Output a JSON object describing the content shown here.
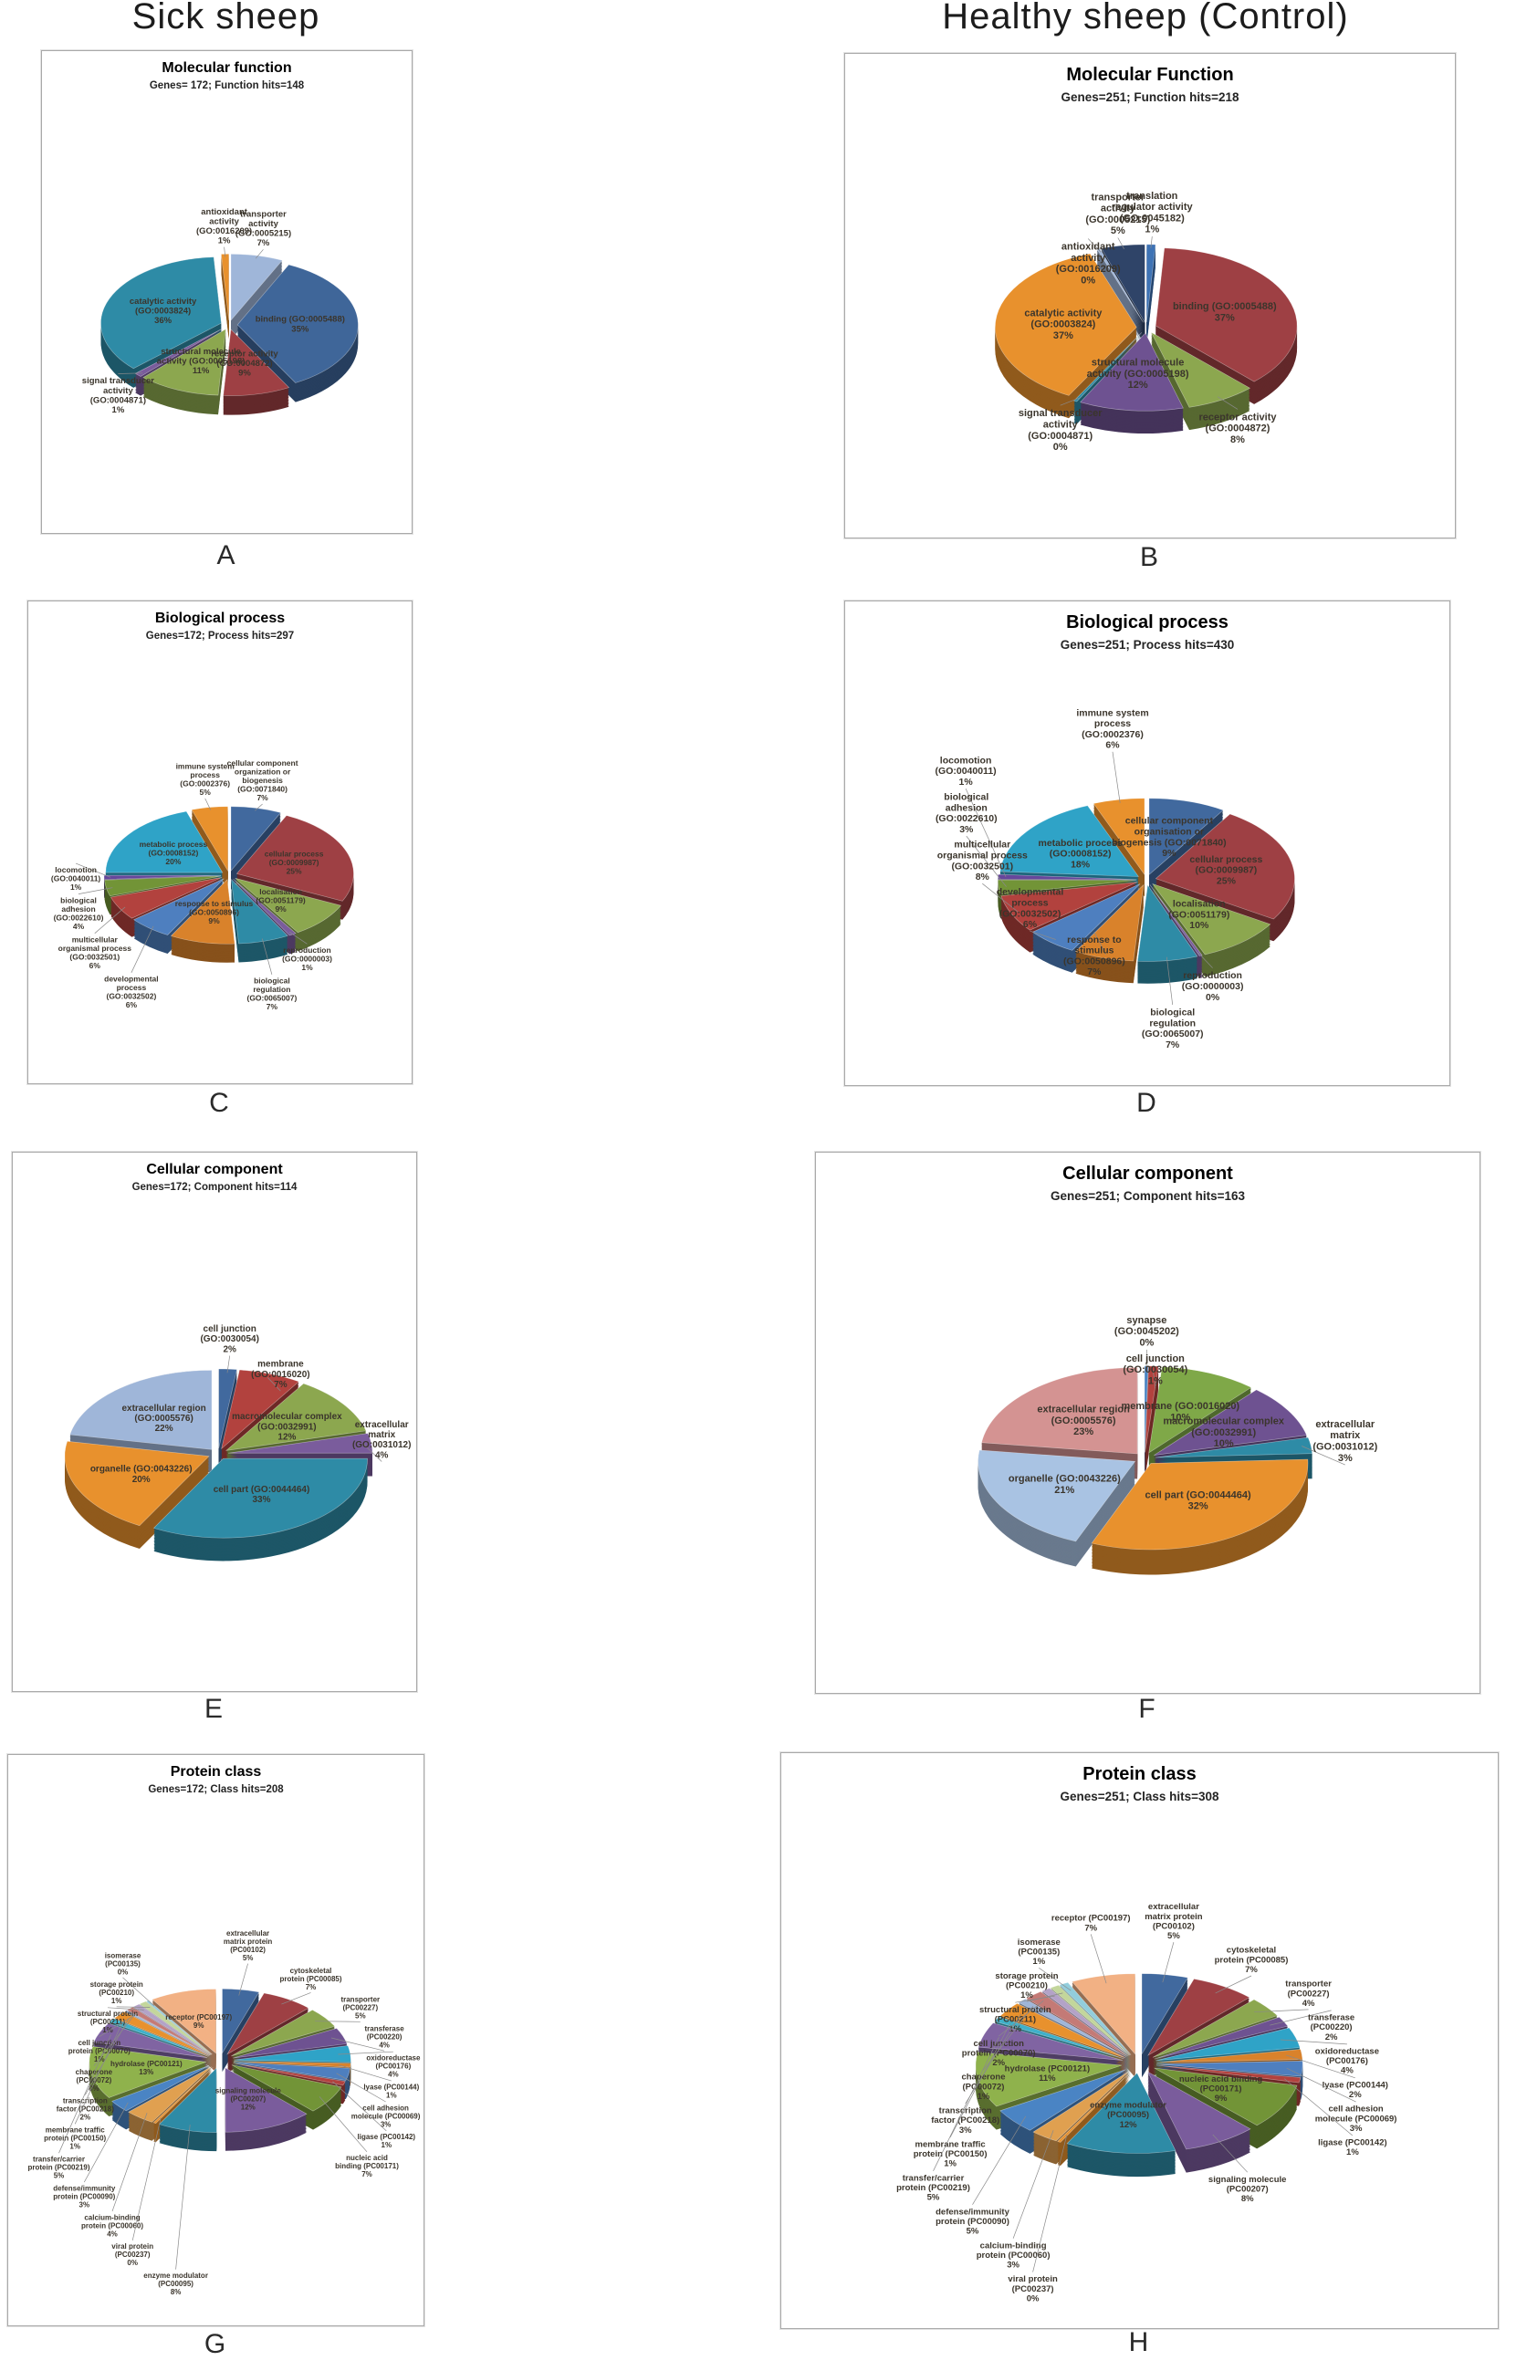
{
  "columns": {
    "sick": "Sick sheep",
    "healthy": "Healthy sheep (Control)"
  },
  "chart_data": [
    {
      "panel": "A",
      "group": "Sick sheep",
      "type": "pie",
      "title": "Molecular function",
      "subtitle": "Genes= 172; Function hits=148",
      "slices": [
        {
          "name": "transporter activity",
          "code": "(GO:0005215)",
          "pct": 7,
          "color": "#9FB6D9"
        },
        {
          "name": "binding",
          "code": "(GO:0005488)",
          "pct": 35,
          "color": "#3F6699"
        },
        {
          "name": "receptor activity",
          "code": "(GO:0004872)",
          "pct": 9,
          "color": "#9E4044"
        },
        {
          "name": "structural molecule activity",
          "code": "(GO:0005198)",
          "pct": 11,
          "color": "#8CA74F"
        },
        {
          "name": "signal transducer activity",
          "code": "(GO:0004871)",
          "pct": 1,
          "color": "#7A5C9C"
        },
        {
          "name": "catalytic activity",
          "code": "(GO:0003824)",
          "pct": 36,
          "color": "#2E8BA6"
        },
        {
          "name": "antioxidant activity",
          "code": "(GO:0016209)",
          "pct": 1,
          "color": "#E8912D"
        }
      ]
    },
    {
      "panel": "B",
      "group": "Healthy sheep (Control)",
      "type": "pie",
      "title": "Molecular Function",
      "subtitle": "Genes=251; Function hits=218",
      "slices": [
        {
          "name": "translation regulator activity",
          "code": "(GO:0045182)",
          "pct": 1,
          "color": "#3E73B5"
        },
        {
          "name": "binding",
          "code": "(GO:0005488)",
          "pct": 37,
          "color": "#9E4044"
        },
        {
          "name": "receptor activity",
          "code": "(GO:0004872)",
          "pct": 8,
          "color": "#8CA74F"
        },
        {
          "name": "structural molecule activity",
          "code": "(GO:0005198)",
          "pct": 12,
          "color": "#6E5291"
        },
        {
          "name": "signal transducer activity",
          "code": "(GO:0004871)",
          "pct": 0,
          "color": "#2E8BA6"
        },
        {
          "name": "catalytic activity",
          "code": "(GO:0003824)",
          "pct": 37,
          "color": "#E8912D"
        },
        {
          "name": "antioxidant activity",
          "code": "(GO:0016209)",
          "pct": 0,
          "color": "#9FB6D9"
        },
        {
          "name": "transporter activity",
          "code": "(GO:0005215)",
          "pct": 5,
          "color": "#2F4468"
        }
      ]
    },
    {
      "panel": "C",
      "group": "Sick sheep",
      "type": "pie",
      "title": "Biological process",
      "subtitle": "Genes=172; Process hits=297",
      "slices": [
        {
          "name": "cellular component organization or biogenesis",
          "code": "(GO:0071840)",
          "pct": 7,
          "color": "#41699E"
        },
        {
          "name": "cellular process",
          "code": "(GO:0009987)",
          "pct": 25,
          "color": "#9E4044"
        },
        {
          "name": "localisation",
          "code": "(GO:0051179)",
          "pct": 9,
          "color": "#8CA74F"
        },
        {
          "name": "reproduction",
          "code": "(GO:0000003)",
          "pct": 1,
          "color": "#7A5C9C"
        },
        {
          "name": "biological regulation",
          "code": "(GO:0065007)",
          "pct": 7,
          "color": "#2E8BA6"
        },
        {
          "name": "response to stimulus",
          "code": "(GO:0050896)",
          "pct": 9,
          "color": "#D9822B"
        },
        {
          "name": "developmental process",
          "code": "(GO:0032502)",
          "pct": 6,
          "color": "#4E7FBF"
        },
        {
          "name": "multicellular organismal process",
          "code": "(GO:0032501)",
          "pct": 6,
          "color": "#B2423E"
        },
        {
          "name": "biological adhesion",
          "code": "(GO:0022610)",
          "pct": 4,
          "color": "#729437"
        },
        {
          "name": "locomotion",
          "code": "(GO:0040011)",
          "pct": 1,
          "color": "#66479B"
        },
        {
          "name": "metabolic process",
          "code": "(GO:0008152)",
          "pct": 20,
          "color": "#2FA3C7"
        },
        {
          "name": "immune system process",
          "code": "(GO:0002376)",
          "pct": 5,
          "color": "#E8912D"
        }
      ]
    },
    {
      "panel": "D",
      "group": "Healthy sheep (Control)",
      "type": "pie",
      "title": "Biological process",
      "subtitle": "Genes=251; Process hits=430",
      "slices": [
        {
          "name": "cellular component organisation or biogenesis",
          "code": "(GO:0071840)",
          "pct": 9,
          "color": "#41699E"
        },
        {
          "name": "cellular process",
          "code": "(GO:0009987)",
          "pct": 25,
          "color": "#9E4044"
        },
        {
          "name": "localisation",
          "code": "(GO:0051179)",
          "pct": 10,
          "color": "#8CA74F"
        },
        {
          "name": "reproduction",
          "code": "(GO:0000003)",
          "pct": 0,
          "color": "#7A5C9C"
        },
        {
          "name": "biological regulation",
          "code": "(GO:0065007)",
          "pct": 7,
          "color": "#2E8BA6"
        },
        {
          "name": "response to stimulus",
          "code": "(GO:0050896)",
          "pct": 7,
          "color": "#D9822B"
        },
        {
          "name": "developmental process",
          "code": "(GO:0032502)",
          "pct": 6,
          "color": "#4E7FBF"
        },
        {
          "name": "multicellular organismal process",
          "code": "(GO:0032501)",
          "pct": 8,
          "color": "#B2423E"
        },
        {
          "name": "biological adhesion",
          "code": "(GO:0022610)",
          "pct": 3,
          "color": "#729437"
        },
        {
          "name": "locomotion",
          "code": "(GO:0040011)",
          "pct": 1,
          "color": "#66479B"
        },
        {
          "name": "metabolic process",
          "code": "(GO:0008152)",
          "pct": 18,
          "color": "#2FA3C7"
        },
        {
          "name": "immune system process",
          "code": "(GO:0002376)",
          "pct": 6,
          "color": "#E8912D"
        }
      ]
    },
    {
      "panel": "E",
      "group": "Sick sheep",
      "type": "pie",
      "title": "Cellular component",
      "subtitle": "Genes=172; Component hits=114",
      "slices": [
        {
          "name": "cell junction",
          "code": "(GO:0030054)",
          "pct": 2,
          "color": "#41699E"
        },
        {
          "name": "membrane",
          "code": "(GO:0016020)",
          "pct": 7,
          "color": "#B2423E"
        },
        {
          "name": "macromolecular complex",
          "code": "(GO:0032991)",
          "pct": 12,
          "color": "#8CA74F"
        },
        {
          "name": "extracellular matrix",
          "code": "(GO:0031012)",
          "pct": 4,
          "color": "#7A5C9C"
        },
        {
          "name": "cell part",
          "code": "(GO:0044464)",
          "pct": 33,
          "color": "#2E8BA6"
        },
        {
          "name": "organelle",
          "code": "(GO:0043226)",
          "pct": 20,
          "color": "#E8912D"
        },
        {
          "name": "extracellular region",
          "code": "(GO:0005576)",
          "pct": 22,
          "color": "#9FB6D9"
        }
      ]
    },
    {
      "panel": "F",
      "group": "Healthy sheep (Control)",
      "type": "pie",
      "title": "Cellular component",
      "subtitle": "Genes=251; Component hits=163",
      "slices": [
        {
          "name": "synapse",
          "code": "(GO:0045202)",
          "pct": 0,
          "color": "#4A84C4"
        },
        {
          "name": "cell junction",
          "code": "(GO:0030054)",
          "pct": 1,
          "color": "#B2423E"
        },
        {
          "name": "membrane",
          "code": "(GO:0016020)",
          "pct": 10,
          "color": "#7FA848"
        },
        {
          "name": "macromolecular complex",
          "code": "(GO:0032991)",
          "pct": 10,
          "color": "#6E5291"
        },
        {
          "name": "extracellular matrix",
          "code": "(GO:0031012)",
          "pct": 3,
          "color": "#2E8BA6"
        },
        {
          "name": "cell part",
          "code": "(GO:0044464)",
          "pct": 32,
          "color": "#E8912D"
        },
        {
          "name": "organelle",
          "code": "(GO:0043226)",
          "pct": 21,
          "color": "#A9C3E3"
        },
        {
          "name": "extracellular region",
          "code": "(GO:0005576)",
          "pct": 23,
          "color": "#D49392"
        }
      ]
    },
    {
      "panel": "G",
      "group": "Sick sheep",
      "type": "pie",
      "title": "Protein class",
      "subtitle": "Genes=172; Class hits=208",
      "slices": [
        {
          "name": "extracellular matrix protein",
          "code": "(PC00102)",
          "pct": 5,
          "color": "#41699E"
        },
        {
          "name": "cytoskeletal protein",
          "code": "(PC00085)",
          "pct": 7,
          "color": "#9E4044"
        },
        {
          "name": "transporter",
          "code": "(PC00227)",
          "pct": 5,
          "color": "#8CA74F"
        },
        {
          "name": "transferase",
          "code": "(PC00220)",
          "pct": 4,
          "color": "#6E5291"
        },
        {
          "name": "oxidoreductase",
          "code": "(PC00176)",
          "pct": 4,
          "color": "#2FA3C7"
        },
        {
          "name": "lyase",
          "code": "(PC00144)",
          "pct": 1,
          "color": "#D9822B"
        },
        {
          "name": "cell adhesion molecule",
          "code": "(PC00069)",
          "pct": 3,
          "color": "#4E7FBF"
        },
        {
          "name": "ligase",
          "code": "(PC00142)",
          "pct": 1,
          "color": "#B2423E"
        },
        {
          "name": "nucleic acid binding",
          "code": "(PC00171)",
          "pct": 7,
          "color": "#729437"
        },
        {
          "name": "signaling molecule",
          "code": "(PC00207)",
          "pct": 12,
          "color": "#7A5C9C"
        },
        {
          "name": "enzyme modulator",
          "code": "(PC00095)",
          "pct": 8,
          "color": "#2E8BA6"
        },
        {
          "name": "viral protein",
          "code": "(PC00237)",
          "pct": 0,
          "color": "#E8912D"
        },
        {
          "name": "calcium-binding protein",
          "code": "(PC00060)",
          "pct": 4,
          "color": "#E0A050"
        },
        {
          "name": "defense/immunity protein",
          "code": "(PC00090)",
          "pct": 3,
          "color": "#4A84C4"
        },
        {
          "name": "hydrolase",
          "code": "(PC00121)",
          "pct": 13,
          "color": "#8FB24C"
        },
        {
          "name": "transfer/carrier protein",
          "code": "(PC00219)",
          "pct": 5,
          "color": "#8064A2"
        },
        {
          "name": "membrane traffic protein",
          "code": "(PC00150)",
          "pct": 1,
          "color": "#3FB0C9"
        },
        {
          "name": "transcription factor",
          "code": "(PC00218)",
          "pct": 2,
          "color": "#E8912D"
        },
        {
          "name": "chaperone",
          "code": "(PC00072)",
          "pct": 0,
          "color": "#9FB6D9"
        },
        {
          "name": "cell junction protein",
          "code": "(PC00070)",
          "pct": 1,
          "color": "#C47A76"
        },
        {
          "name": "structural protein",
          "code": "(PC00211)",
          "pct": 1,
          "color": "#B3A2C7"
        },
        {
          "name": "storage protein",
          "code": "(PC00210)",
          "pct": 1,
          "color": "#C3D69B"
        },
        {
          "name": "isomerase",
          "code": "(PC00135)",
          "pct": 0,
          "color": "#92CDDC"
        },
        {
          "name": "receptor",
          "code": "(PC00197)",
          "pct": 9,
          "color": "#F2B184"
        }
      ]
    },
    {
      "panel": "H",
      "group": "Healthy sheep (Control)",
      "type": "pie",
      "title": "Protein class",
      "subtitle": "Genes=251; Class hits=308",
      "slices": [
        {
          "name": "extracellular matrix protein",
          "code": "(PC00102)",
          "pct": 5,
          "color": "#41699E"
        },
        {
          "name": "cytoskeletal protein",
          "code": "(PC00085)",
          "pct": 7,
          "color": "#9E4044"
        },
        {
          "name": "transporter",
          "code": "(PC00227)",
          "pct": 4,
          "color": "#8CA74F"
        },
        {
          "name": "transferase",
          "code": "(PC00220)",
          "pct": 2,
          "color": "#6E5291"
        },
        {
          "name": "oxidoreductase",
          "code": "(PC00176)",
          "pct": 4,
          "color": "#2FA3C7"
        },
        {
          "name": "lyase",
          "code": "(PC00144)",
          "pct": 2,
          "color": "#D9822B"
        },
        {
          "name": "cell adhesion molecule",
          "code": "(PC00069)",
          "pct": 3,
          "color": "#4E7FBF"
        },
        {
          "name": "ligase",
          "code": "(PC00142)",
          "pct": 1,
          "color": "#B2423E"
        },
        {
          "name": "nucleic acid binding",
          "code": "(PC00171)",
          "pct": 9,
          "color": "#729437"
        },
        {
          "name": "signaling molecule",
          "code": "(PC00207)",
          "pct": 8,
          "color": "#7A5C9C"
        },
        {
          "name": "enzyme modulator",
          "code": "(PC00095)",
          "pct": 12,
          "color": "#2E8BA6"
        },
        {
          "name": "viral protein",
          "code": "(PC00237)",
          "pct": 0,
          "color": "#E8912D"
        },
        {
          "name": "calcium-binding protein",
          "code": "(PC00060)",
          "pct": 3,
          "color": "#E0A050"
        },
        {
          "name": "defense/immunity protein",
          "code": "(PC00090)",
          "pct": 5,
          "color": "#4A84C4"
        },
        {
          "name": "hydrolase",
          "code": "(PC00121)",
          "pct": 11,
          "color": "#8FB24C"
        },
        {
          "name": "transfer/carrier protein",
          "code": "(PC00219)",
          "pct": 5,
          "color": "#8064A2"
        },
        {
          "name": "membrane traffic protein",
          "code": "(PC00150)",
          "pct": 1,
          "color": "#3FB0C9"
        },
        {
          "name": "transcription factor",
          "code": "(PC00218)",
          "pct": 3,
          "color": "#E8912D"
        },
        {
          "name": "chaperone",
          "code": "(PC00072)",
          "pct": 1,
          "color": "#9FB6D9"
        },
        {
          "name": "cell junction protein",
          "code": "(PC00070)",
          "pct": 2,
          "color": "#C47A76"
        },
        {
          "name": "structural protein",
          "code": "(PC00211)",
          "pct": 1,
          "color": "#B3A2C7"
        },
        {
          "name": "storage protein",
          "code": "(PC00210)",
          "pct": 1,
          "color": "#C3D69B"
        },
        {
          "name": "isomerase",
          "code": "(PC00135)",
          "pct": 1,
          "color": "#92CDDC"
        },
        {
          "name": "receptor",
          "code": "(PC00197)",
          "pct": 7,
          "color": "#F2B184"
        }
      ]
    }
  ]
}
